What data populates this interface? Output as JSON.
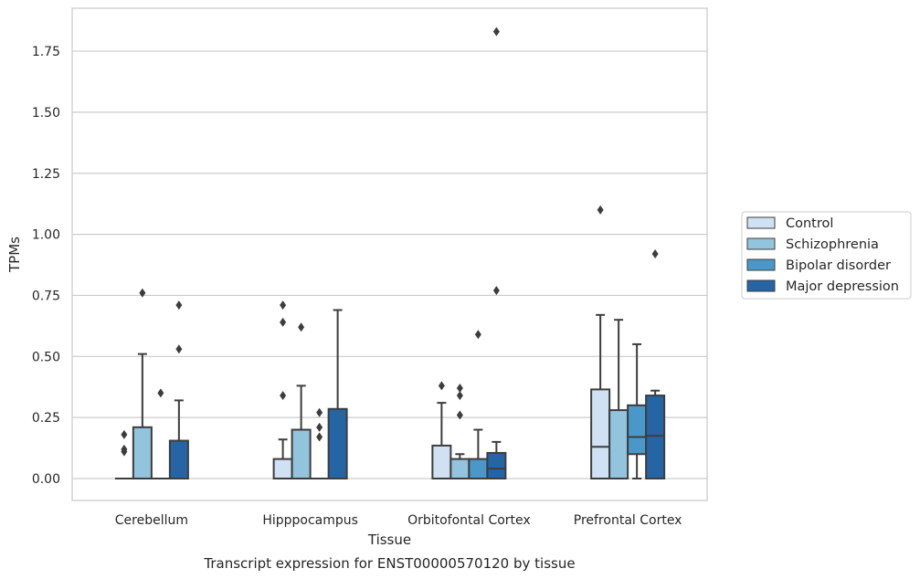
{
  "chart_data": {
    "type": "boxplot",
    "title": "Transcript expression for ENST00000570120 by tissue",
    "xlabel": "Tissue",
    "ylabel": "TPMs",
    "ylim": [
      -0.09,
      1.93
    ],
    "yticks": [
      "0.00",
      "0.25",
      "0.50",
      "0.75",
      "1.00",
      "1.25",
      "1.50",
      "1.75"
    ],
    "grid": "horizontal",
    "legend_position": "right",
    "categories": [
      "Cerebellum",
      "Hipppocampus",
      "Orbitofontal Cortex",
      "Prefrontal Cortex"
    ],
    "series": [
      {
        "name": "Control",
        "color": "#cfe1f2",
        "boxes": [
          {
            "q1": 0,
            "median": 0,
            "q3": 0,
            "whisker_low": 0,
            "whisker_high": 0,
            "outliers": [
              0.18,
              0.12,
              0.11
            ]
          },
          {
            "q1": 0,
            "median": 0,
            "q3": 0.08,
            "whisker_low": 0,
            "whisker_high": 0.16,
            "outliers": [
              0.34,
              0.64,
              0.71
            ]
          },
          {
            "q1": 0,
            "median": 0,
            "q3": 0.135,
            "whisker_low": 0,
            "whisker_high": 0.31,
            "outliers": [
              0.38
            ]
          },
          {
            "q1": 0,
            "median": 0.13,
            "q3": 0.365,
            "whisker_low": 0,
            "whisker_high": 0.67,
            "outliers": [
              1.1
            ]
          }
        ]
      },
      {
        "name": "Schizophrenia",
        "color": "#93c4de",
        "boxes": [
          {
            "q1": 0,
            "median": 0,
            "q3": 0.21,
            "whisker_low": 0,
            "whisker_high": 0.51,
            "outliers": [
              0.76
            ]
          },
          {
            "q1": 0,
            "median": 0,
            "q3": 0.2,
            "whisker_low": 0,
            "whisker_high": 0.38,
            "outliers": [
              0.62
            ]
          },
          {
            "q1": 0,
            "median": 0,
            "q3": 0.08,
            "whisker_low": 0,
            "whisker_high": 0.1,
            "outliers": [
              0.26,
              0.34,
              0.37
            ]
          },
          {
            "q1": 0,
            "median": 0,
            "q3": 0.28,
            "whisker_low": 0,
            "whisker_high": 0.65,
            "outliers": []
          }
        ]
      },
      {
        "name": "Bipolar disorder",
        "color": "#4a98c9",
        "boxes": [
          {
            "q1": 0,
            "median": 0,
            "q3": 0,
            "whisker_low": 0,
            "whisker_high": 0,
            "outliers": [
              0.35
            ]
          },
          {
            "q1": 0,
            "median": 0,
            "q3": 0,
            "whisker_low": 0,
            "whisker_high": 0,
            "outliers": [
              0.17,
              0.21,
              0.27
            ]
          },
          {
            "q1": 0,
            "median": 0,
            "q3": 0.08,
            "whisker_low": 0,
            "whisker_high": 0.2,
            "outliers": [
              0.59
            ]
          },
          {
            "q1": 0.1,
            "median": 0.17,
            "q3": 0.3,
            "whisker_low": 0,
            "whisker_high": 0.55,
            "outliers": []
          }
        ]
      },
      {
        "name": "Major depression",
        "color": "#2565a6",
        "boxes": [
          {
            "q1": 0,
            "median": 0,
            "q3": 0.155,
            "whisker_low": 0,
            "whisker_high": 0.32,
            "outliers": [
              0.53,
              0.71
            ]
          },
          {
            "q1": 0,
            "median": 0,
            "q3": 0.285,
            "whisker_low": 0,
            "whisker_high": 0.69,
            "outliers": []
          },
          {
            "q1": 0,
            "median": 0.04,
            "q3": 0.105,
            "whisker_low": 0,
            "whisker_high": 0.15,
            "outliers": [
              0.77,
              1.83
            ]
          },
          {
            "q1": 0,
            "median": 0.175,
            "q3": 0.34,
            "whisker_low": 0,
            "whisker_high": 0.36,
            "outliers": [
              0.92
            ]
          }
        ]
      }
    ]
  }
}
